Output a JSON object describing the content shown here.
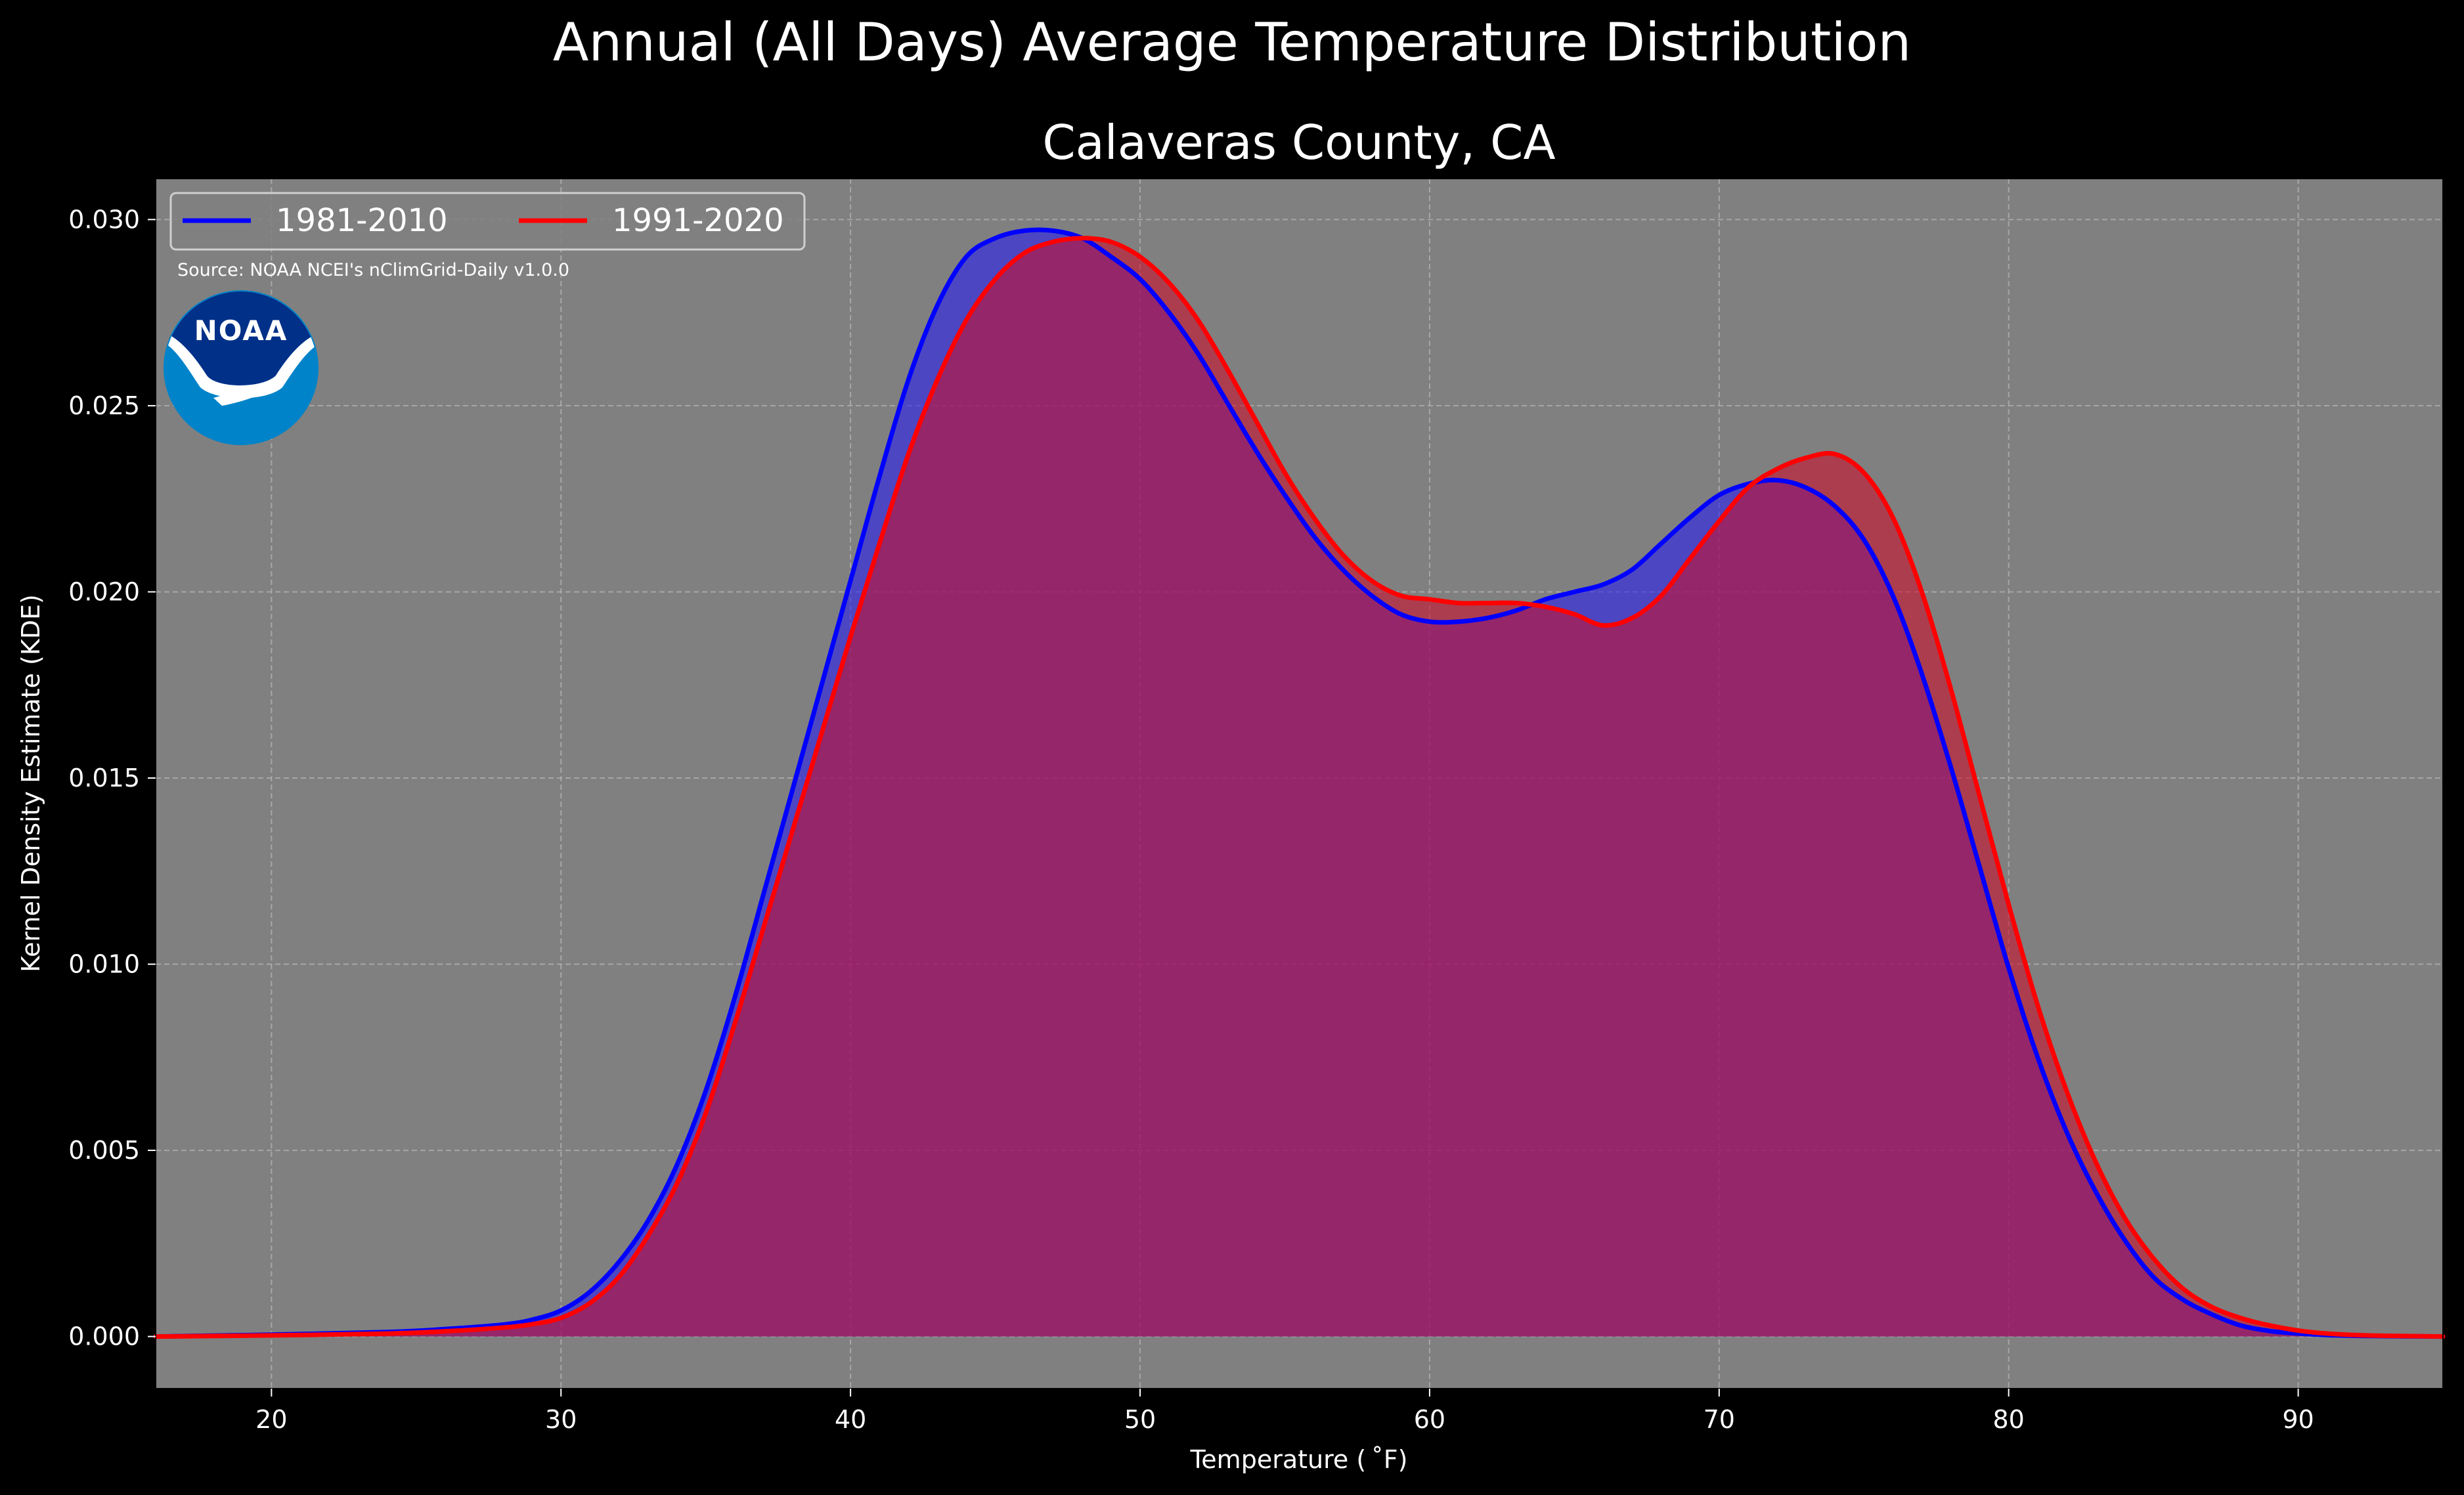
{
  "chart_data": {
    "type": "area",
    "title": "Annual (All Days) Average Temperature Distribution",
    "subtitle": "Calaveras County, CA",
    "xlabel": "Temperature ( ˚F)",
    "ylabel": "Kernel Density Estimate (KDE)",
    "xlim": [
      16,
      95
    ],
    "ylim": [
      -0.0014,
      0.0311
    ],
    "xticks": [
      20,
      30,
      40,
      50,
      60,
      70,
      80,
      90
    ],
    "yticks": [
      0.0,
      0.005,
      0.01,
      0.015,
      0.02,
      0.025,
      0.03
    ],
    "ytick_labels": [
      "0.000",
      "0.005",
      "0.010",
      "0.015",
      "0.020",
      "0.025",
      "0.030"
    ],
    "grid": true,
    "legend_position": "top-left",
    "source_note": "Source: NOAA NCEI's nClimGrid-Daily v1.0.0",
    "logo_text": "NOAA",
    "colors": {
      "figure_bg": "#000000",
      "axes_bg": "#808080",
      "grid": "#b0b0b0"
    },
    "series": [
      {
        "name": "1981-2010",
        "color": "#0000ff",
        "fill": "#2b1ff0",
        "fill_opacity": 0.6,
        "x": [
          16,
          20,
          24,
          26,
          28,
          29,
          30,
          31,
          32,
          33,
          34,
          35,
          36,
          37,
          38,
          39,
          40,
          41,
          42,
          43,
          44,
          45,
          46,
          47,
          48,
          49,
          50,
          51,
          52,
          53,
          54,
          55,
          56,
          57,
          58,
          59,
          60,
          61,
          62,
          63,
          64,
          65,
          66,
          67,
          68,
          69,
          70,
          71,
          72,
          73,
          74,
          75,
          76,
          77,
          78,
          79,
          80,
          81,
          82,
          83,
          84,
          85,
          86,
          87,
          88,
          89,
          90,
          91,
          92,
          93,
          95
        ],
        "y": [
          0.0,
          5e-05,
          0.00012,
          0.0002,
          0.00032,
          0.00045,
          0.0007,
          0.0012,
          0.002,
          0.0031,
          0.0046,
          0.0066,
          0.0091,
          0.0119,
          0.0147,
          0.0175,
          0.0203,
          0.0231,
          0.0257,
          0.0277,
          0.029,
          0.0295,
          0.0297,
          0.0297,
          0.0295,
          0.029,
          0.0284,
          0.0275,
          0.0264,
          0.0251,
          0.0238,
          0.0226,
          0.0215,
          0.0206,
          0.0199,
          0.0194,
          0.0192,
          0.0192,
          0.0193,
          0.0195,
          0.0198,
          0.02,
          0.0202,
          0.0206,
          0.0213,
          0.022,
          0.0226,
          0.0229,
          0.023,
          0.0228,
          0.0223,
          0.0214,
          0.0199,
          0.0178,
          0.0153,
          0.0126,
          0.0099,
          0.0075,
          0.0055,
          0.0039,
          0.0026,
          0.0016,
          0.001,
          0.0006,
          0.0003,
          0.00015,
          8e-05,
          4e-05,
          2e-05,
          1e-05,
          0.0
        ]
      },
      {
        "name": "1991-2020",
        "color": "#ff0000",
        "fill": "#c8102e",
        "fill_opacity": 0.6,
        "x": [
          16,
          20,
          24,
          26,
          28,
          29,
          30,
          31,
          32,
          33,
          34,
          35,
          36,
          37,
          38,
          39,
          40,
          41,
          42,
          43,
          44,
          45,
          46,
          47,
          48,
          49,
          50,
          51,
          52,
          53,
          54,
          55,
          56,
          57,
          58,
          59,
          60,
          61,
          62,
          63,
          64,
          65,
          66,
          67,
          68,
          69,
          70,
          71,
          72,
          73,
          74,
          75,
          76,
          77,
          78,
          79,
          80,
          81,
          82,
          83,
          84,
          85,
          86,
          87,
          88,
          89,
          90,
          91,
          92,
          93,
          95
        ],
        "y": [
          0.0,
          3e-05,
          8e-05,
          0.00014,
          0.00024,
          0.00033,
          0.0005,
          0.0009,
          0.0016,
          0.0027,
          0.0041,
          0.006,
          0.0084,
          0.011,
          0.0136,
          0.0162,
          0.0188,
          0.0213,
          0.0237,
          0.0257,
          0.0273,
          0.0284,
          0.0291,
          0.0294,
          0.0295,
          0.0294,
          0.029,
          0.0283,
          0.0273,
          0.026,
          0.0246,
          0.0232,
          0.022,
          0.021,
          0.0203,
          0.0199,
          0.0198,
          0.0197,
          0.0197,
          0.0197,
          0.0196,
          0.0194,
          0.0191,
          0.0193,
          0.0199,
          0.0209,
          0.0219,
          0.0228,
          0.0233,
          0.0236,
          0.0237,
          0.0232,
          0.022,
          0.02,
          0.0174,
          0.0145,
          0.0116,
          0.0089,
          0.0066,
          0.0047,
          0.0032,
          0.0021,
          0.0013,
          0.0008,
          0.0005,
          0.0003,
          0.00016,
          8e-05,
          4e-05,
          2e-05,
          0.0
        ]
      }
    ]
  }
}
